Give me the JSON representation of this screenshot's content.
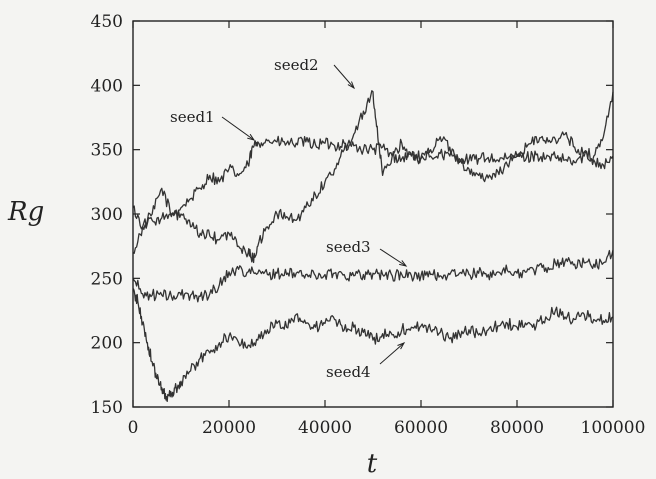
{
  "chart_data": {
    "type": "line",
    "xlabel": "t",
    "ylabel": "Rg",
    "xlim": [
      0,
      100000
    ],
    "ylim": [
      150,
      450
    ],
    "grid": false,
    "xticks": [
      0,
      20000,
      40000,
      60000,
      80000,
      100000
    ],
    "yticks": [
      150,
      200,
      250,
      300,
      350,
      400,
      450
    ],
    "xtick_labels": [
      "0",
      "20000",
      "40000",
      "60000",
      "80000",
      "100000"
    ],
    "ytick_labels": [
      "150",
      "200",
      "250",
      "300",
      "350",
      "400",
      "450"
    ],
    "series": [
      {
        "name": "seed1",
        "x": [
          0,
          2000,
          4000,
          6000,
          8000,
          10000,
          12000,
          14000,
          16000,
          18000,
          20000,
          22000,
          24000,
          25000,
          26000,
          28000,
          30000,
          32000,
          34000,
          36000,
          38000,
          40000,
          42000,
          44000,
          46000,
          48000,
          50000,
          52000,
          54000,
          56000,
          58000,
          60000,
          62000,
          64000,
          66000,
          68000,
          70000,
          72000,
          74000,
          76000,
          78000,
          80000,
          82000,
          84000,
          86000,
          88000,
          90000,
          92000,
          94000,
          96000,
          98000,
          100000
        ],
        "values": [
          305,
          290,
          300,
          320,
          300,
          305,
          312,
          320,
          330,
          325,
          335,
          330,
          338,
          352,
          356,
          357,
          356,
          355,
          355,
          356,
          354,
          355,
          353,
          355,
          353,
          350,
          350,
          352,
          345,
          343,
          346,
          344,
          345,
          347,
          345,
          343,
          342,
          343,
          344,
          342,
          343,
          345,
          344,
          346,
          343,
          344,
          342,
          340,
          345,
          342,
          338,
          345
        ]
      },
      {
        "name": "seed2",
        "x": [
          0,
          2000,
          4000,
          6000,
          8000,
          10000,
          12000,
          14000,
          16000,
          18000,
          20000,
          22000,
          24000,
          25000,
          26000,
          28000,
          30000,
          32000,
          34000,
          36000,
          38000,
          40000,
          42000,
          44000,
          46000,
          48000,
          50000,
          51000,
          52000,
          54000,
          56000,
          58000,
          60000,
          62000,
          64000,
          66000,
          68000,
          70000,
          72000,
          74000,
          76000,
          78000,
          80000,
          82000,
          84000,
          86000,
          88000,
          90000,
          92000,
          94000,
          96000,
          98000,
          100000
        ],
        "values": [
          270,
          290,
          295,
          297,
          298,
          300,
          290,
          285,
          283,
          280,
          285,
          275,
          270,
          265,
          275,
          290,
          300,
          298,
          295,
          305,
          315,
          325,
          335,
          350,
          362,
          380,
          395,
          360,
          330,
          345,
          355,
          345,
          343,
          350,
          360,
          352,
          340,
          335,
          330,
          328,
          333,
          338,
          345,
          352,
          360,
          355,
          358,
          362,
          352,
          348,
          345,
          360,
          395
        ]
      },
      {
        "name": "seed3",
        "x": [
          0,
          2000,
          4000,
          6000,
          8000,
          10000,
          12000,
          14000,
          16000,
          18000,
          20000,
          22000,
          24000,
          26000,
          28000,
          30000,
          32000,
          34000,
          36000,
          38000,
          40000,
          42000,
          44000,
          46000,
          48000,
          50000,
          52000,
          54000,
          56000,
          58000,
          60000,
          62000,
          64000,
          66000,
          68000,
          70000,
          72000,
          74000,
          76000,
          78000,
          80000,
          82000,
          84000,
          86000,
          88000,
          90000,
          92000,
          94000,
          96000,
          98000,
          100000
        ],
        "values": [
          250,
          238,
          237,
          237,
          236,
          237,
          237,
          236,
          238,
          245,
          255,
          257,
          255,
          254,
          253,
          254,
          253,
          254,
          253,
          252,
          253,
          254,
          253,
          252,
          253,
          254,
          253,
          252,
          253,
          252,
          252,
          253,
          252,
          253,
          254,
          253,
          254,
          253,
          255,
          256,
          254,
          255,
          257,
          258,
          262,
          263,
          261,
          262,
          261,
          262,
          272
        ]
      },
      {
        "name": "seed4",
        "x": [
          0,
          1000,
          2000,
          3000,
          4000,
          5000,
          6000,
          7000,
          8000,
          9000,
          10000,
          12000,
          14000,
          16000,
          18000,
          20000,
          22000,
          24000,
          26000,
          28000,
          30000,
          32000,
          34000,
          36000,
          38000,
          40000,
          42000,
          44000,
          46000,
          48000,
          50000,
          52000,
          54000,
          56000,
          58000,
          60000,
          62000,
          64000,
          66000,
          68000,
          70000,
          72000,
          74000,
          76000,
          78000,
          80000,
          82000,
          84000,
          86000,
          88000,
          90000,
          92000,
          94000,
          96000,
          98000,
          100000
        ],
        "values": [
          240,
          232,
          215,
          200,
          185,
          172,
          165,
          158,
          160,
          165,
          170,
          178,
          188,
          192,
          200,
          205,
          200,
          198,
          202,
          210,
          215,
          212,
          222,
          215,
          212,
          215,
          218,
          210,
          212,
          208,
          202,
          207,
          206,
          210,
          212,
          213,
          210,
          208,
          203,
          207,
          210,
          206,
          210,
          213,
          215,
          212,
          214,
          213,
          220,
          225,
          220,
          218,
          222,
          218,
          217,
          220
        ]
      }
    ],
    "annotations": [
      {
        "text": "seed1",
        "series": "seed1"
      },
      {
        "text": "seed2",
        "series": "seed2"
      },
      {
        "text": "seed3",
        "series": "seed3"
      },
      {
        "text": "seed4",
        "series": "seed4"
      }
    ],
    "colors": {
      "line": "#333333",
      "axis": "#222222",
      "background": "#f4f4f2"
    }
  }
}
